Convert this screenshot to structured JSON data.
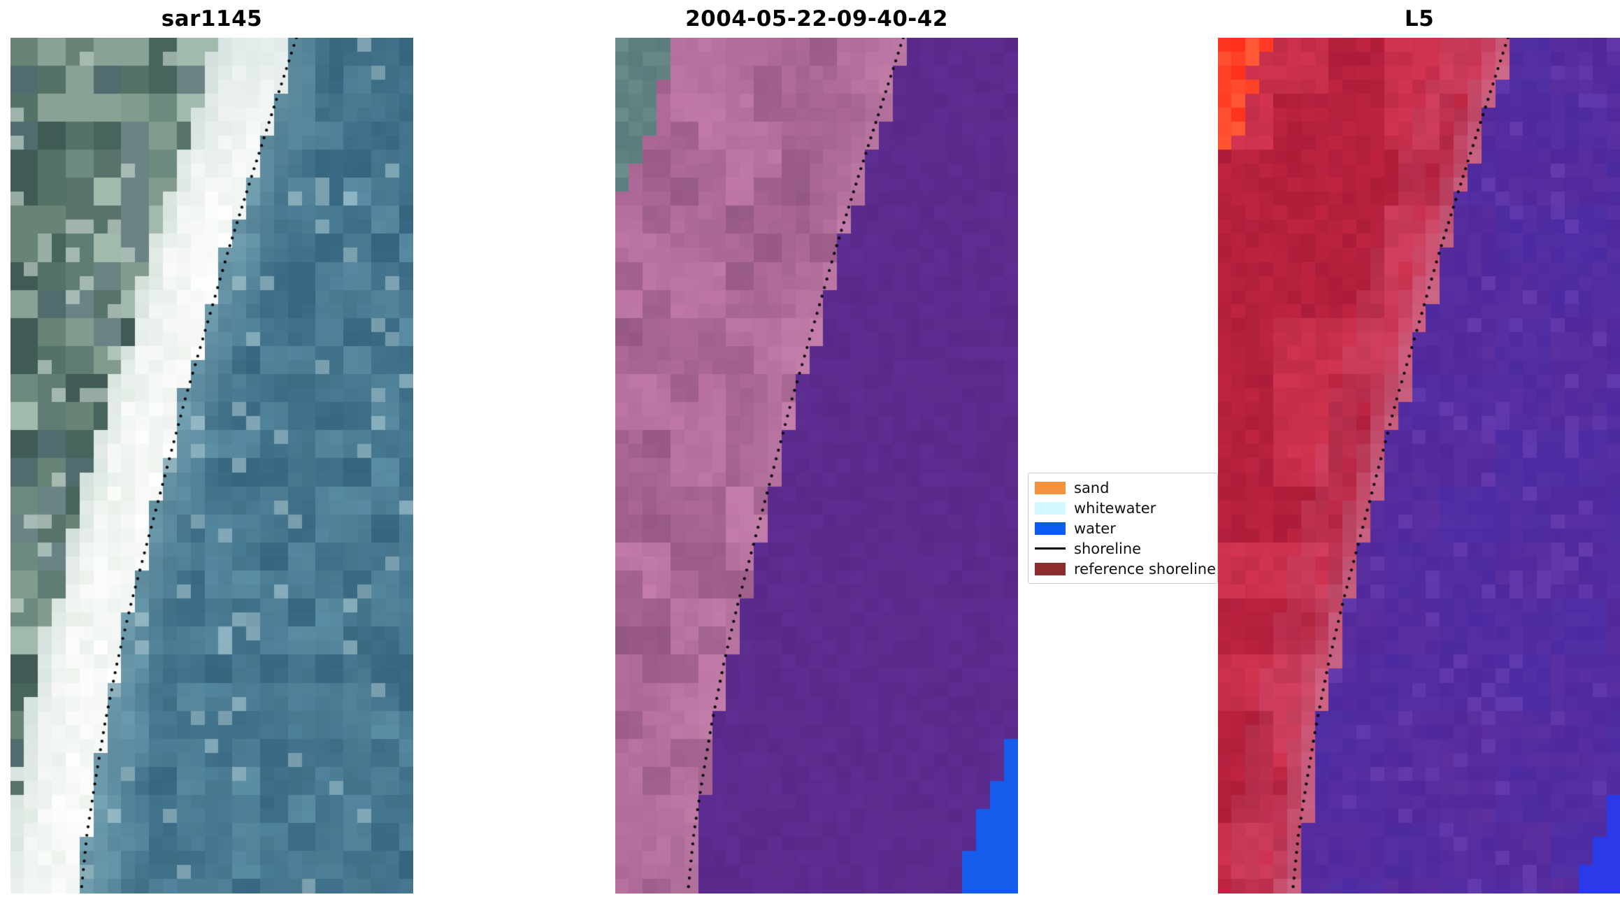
{
  "figure": {
    "background": "#ffffff"
  },
  "panels": [
    {
      "id": "sar1145",
      "title": "sar1145",
      "kind": "rgb-satellite"
    },
    {
      "id": "classified",
      "title": "2004-05-22-09-40-42",
      "kind": "classified"
    },
    {
      "id": "l5",
      "title": "L5",
      "kind": "false-color"
    }
  ],
  "legend": {
    "items": [
      {
        "label": "sand",
        "swatch": "patch",
        "color": "#f5923e"
      },
      {
        "label": "whitewater",
        "swatch": "patch",
        "color": "#d2f8ff"
      },
      {
        "label": "water",
        "swatch": "patch",
        "color": "#0c5cf2"
      },
      {
        "label": "shoreline",
        "swatch": "line",
        "color": "#000000"
      },
      {
        "label": "reference shoreline",
        "swatch": "patch",
        "color": "#8c2e2e"
      }
    ]
  },
  "shoreline": {
    "dot_color": "#000000",
    "points": [
      [
        0.71,
        0
      ],
      [
        0.655,
        0.08
      ],
      [
        0.6,
        0.16
      ],
      [
        0.54,
        0.25
      ],
      [
        0.485,
        0.34
      ],
      [
        0.435,
        0.42
      ],
      [
        0.39,
        0.5
      ],
      [
        0.345,
        0.58
      ],
      [
        0.3,
        0.66
      ],
      [
        0.265,
        0.73
      ],
      [
        0.235,
        0.8
      ],
      [
        0.21,
        0.87
      ],
      [
        0.19,
        0.93
      ],
      [
        0.175,
        1.0
      ]
    ]
  },
  "render": {
    "grid": [
      29,
      61
    ],
    "band_width": 0.19,
    "shoreline_offsets": [
      0,
      0.005,
      0.01
    ],
    "p0": {
      "water_dark": "#386984",
      "water_light": "#5b8fa6",
      "water_shore_light": "#9cc3cc",
      "water_fleck": "#c2dde1",
      "water_top": "#2e6075",
      "water_deep": "#1b3a4a",
      "band_a": "#e8efe9",
      "band_b": "#ffffff",
      "band_edge": "#b7ccc4",
      "band_top_tint": "#c3d6d8",
      "land_palette": [
        "#4c6a62",
        "#5f7d71",
        "#7b9787",
        "#a9c1b2",
        "#5a747c",
        "#415c57"
      ],
      "land_light": "#8fa99b",
      "land_dark": "#3d5850",
      "land_fleck": "#cfe0d6"
    },
    "p1": {
      "water_a": "#58298a",
      "water_b": "#5e2d92",
      "land_a": "#9c5c88",
      "land_b": "#c47cab",
      "land_shore": "#cf8ab4",
      "land_dark": "#8a4f7a",
      "corner_teal_a": "#5a7b7b",
      "corner_teal_b": "#6d8e8c",
      "corner_blue": "#155ced"
    },
    "p2": {
      "purple_a": "#51279a",
      "purple_b": "#5d2f9e",
      "purple_blue": "#4430b0",
      "purple_light": "#7a4fc0",
      "red_a": "#b51f3c",
      "red_b": "#cf2a4a",
      "red_light": "#d94a62",
      "red_dark": "#991830",
      "pink_shore": "#cf7fa2",
      "corner_red_a": "#ff2d1c",
      "corner_red_b": "#ff5a35",
      "corner_blue": "#2b3ae8"
    }
  },
  "chart_data": {
    "type": "image",
    "title": "",
    "panels": [
      {
        "title": "sar1145",
        "content": "True-color satellite crop of a coastline: teal-blue ocean on the right, bright white surf/sand band running diagonally, grey-green vegetated land upper-left, black dotted detected shoreline from upper-right to lower-left"
      },
      {
        "title": "2004-05-22-09-40-42",
        "content": "Classified image for the same date: purple water class on the right, pink/mauve land class on the left, grey-teal patch in the top-left corner, bright blue water patch in the bottom-right corner, black dotted shoreline along the class boundary"
      },
      {
        "title": "L5",
        "content": "Landsat 5 false-color crop: red land on the left with a bright red patch in the top-left corner, pink transition band along the shore, purple water on the right, small blue patch bottom-right, black dotted shoreline"
      }
    ],
    "legend": [
      "sand",
      "whitewater",
      "water",
      "shoreline",
      "reference shoreline"
    ],
    "legend_position": "center right, between second and third panels"
  }
}
